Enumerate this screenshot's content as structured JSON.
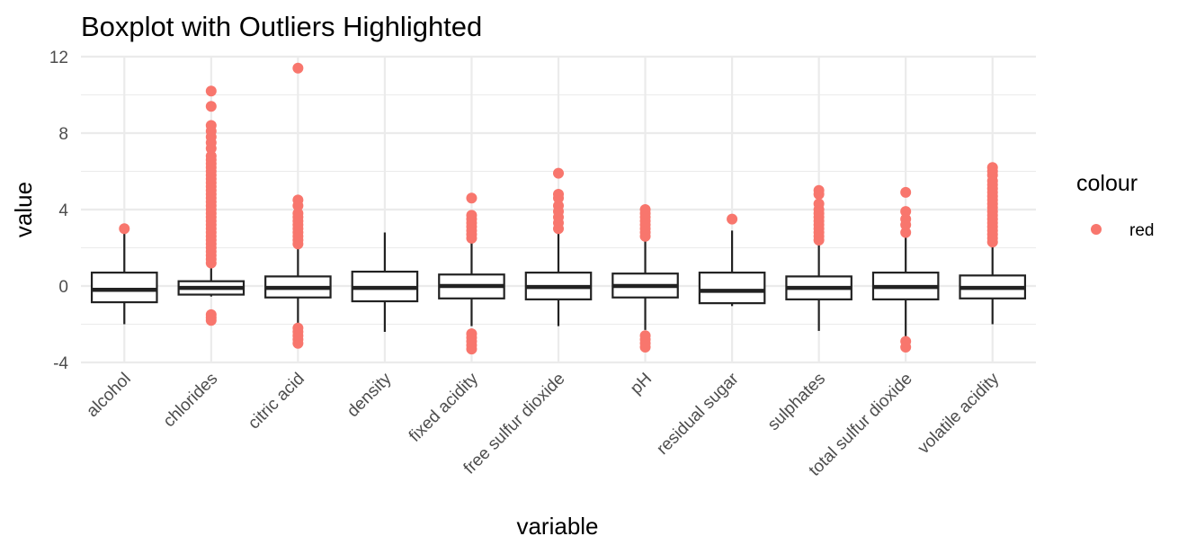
{
  "chart_data": {
    "type": "boxplot",
    "title": "Boxplot with Outliers Highlighted",
    "xlabel": "variable",
    "ylabel": "value",
    "ylim": [
      -4,
      12
    ],
    "yticks": [
      -4,
      0,
      4,
      8,
      12
    ],
    "ytick_labels": [
      "-4",
      "0",
      "4",
      "8",
      "12"
    ],
    "grid": true,
    "legend": {
      "title": "colour",
      "label": "red",
      "position": "right"
    },
    "outlier_color": "#F8766D",
    "box_color": "#222222",
    "categories": [
      "alcohol",
      "chlorides",
      "citric acid",
      "density",
      "fixed acidity",
      "free sulfur dioxide",
      "pH",
      "residual sugar",
      "sulphates",
      "total sulfur dioxide",
      "volatile acidity"
    ],
    "boxes": [
      {
        "whisker_low": -2.0,
        "q1": -0.85,
        "median": -0.2,
        "q3": 0.7,
        "whisker_high": 2.9,
        "outliers": [
          3.0
        ]
      },
      {
        "whisker_low": -0.55,
        "q1": -0.45,
        "median": -0.1,
        "q3": 0.25,
        "whisker_high": 1.0,
        "outliers": [
          -1.8,
          -1.65,
          -1.5,
          1.2,
          1.4,
          1.6,
          1.8,
          2.0,
          2.2,
          2.4,
          2.6,
          2.8,
          3.0,
          3.2,
          3.4,
          3.6,
          3.8,
          4.0,
          4.2,
          4.4,
          4.6,
          4.8,
          5.0,
          5.2,
          5.4,
          5.6,
          5.8,
          6.0,
          6.2,
          6.4,
          6.6,
          6.8,
          7.2,
          7.5,
          7.8,
          8.1,
          8.4,
          9.4,
          10.2
        ]
      },
      {
        "whisker_low": -2.1,
        "q1": -0.6,
        "median": -0.1,
        "q3": 0.5,
        "whisker_high": 2.1,
        "outliers": [
          -3.0,
          -2.8,
          -2.6,
          -2.4,
          -2.2,
          2.2,
          2.4,
          2.6,
          2.8,
          3.0,
          3.2,
          3.4,
          3.6,
          3.8,
          4.2,
          4.5,
          11.4
        ]
      },
      {
        "whisker_low": -2.4,
        "q1": -0.8,
        "median": -0.1,
        "q3": 0.75,
        "whisker_high": 2.8,
        "outliers": []
      },
      {
        "whisker_low": -2.1,
        "q1": -0.65,
        "median": 0.0,
        "q3": 0.6,
        "whisker_high": 2.4,
        "outliers": [
          -3.3,
          -3.1,
          -2.9,
          -2.7,
          -2.5,
          2.5,
          2.7,
          2.9,
          3.1,
          3.3,
          3.5,
          3.7,
          4.6
        ]
      },
      {
        "whisker_low": -2.1,
        "q1": -0.7,
        "median": -0.05,
        "q3": 0.7,
        "whisker_high": 2.8,
        "outliers": [
          3.0,
          3.3,
          3.6,
          3.9,
          4.2,
          4.6,
          4.8,
          5.9
        ]
      },
      {
        "whisker_low": -2.3,
        "q1": -0.6,
        "median": 0.0,
        "q3": 0.65,
        "whisker_high": 2.5,
        "outliers": [
          -3.2,
          -3.0,
          -2.8,
          -2.6,
          2.6,
          2.8,
          3.0,
          3.2,
          3.4,
          3.6,
          3.8,
          4.0
        ]
      },
      {
        "whisker_low": -1.05,
        "q1": -0.9,
        "median": -0.25,
        "q3": 0.7,
        "whisker_high": 2.9,
        "outliers": [
          3.5
        ]
      },
      {
        "whisker_low": -2.35,
        "q1": -0.7,
        "median": -0.1,
        "q3": 0.5,
        "whisker_high": 2.3,
        "outliers": [
          2.4,
          2.6,
          2.8,
          3.0,
          3.2,
          3.4,
          3.6,
          3.8,
          4.0,
          4.3,
          4.8,
          5.0
        ]
      },
      {
        "whisker_low": -2.7,
        "q1": -0.7,
        "median": -0.05,
        "q3": 0.7,
        "whisker_high": 2.6,
        "outliers": [
          -3.2,
          -2.9,
          2.8,
          3.2,
          3.5,
          3.9,
          4.9
        ]
      },
      {
        "whisker_low": -2.0,
        "q1": -0.65,
        "median": -0.1,
        "q3": 0.55,
        "whisker_high": 2.2,
        "outliers": [
          2.3,
          2.5,
          2.7,
          2.9,
          3.1,
          3.3,
          3.5,
          3.7,
          3.9,
          4.1,
          4.3,
          4.5,
          4.7,
          4.9,
          5.1,
          5.3,
          5.5,
          5.8,
          6.0,
          6.2
        ]
      }
    ]
  }
}
